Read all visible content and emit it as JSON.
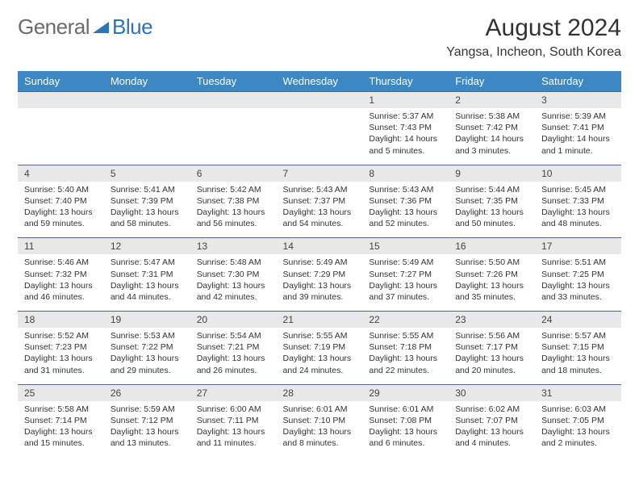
{
  "logo": {
    "text1": "General",
    "text2": "Blue"
  },
  "title": "August 2024",
  "location": "Yangsa, Incheon, South Korea",
  "weekdays": [
    "Sunday",
    "Monday",
    "Tuesday",
    "Wednesday",
    "Thursday",
    "Friday",
    "Saturday"
  ],
  "colors": {
    "header_bg": "#3b88c4",
    "numrow_bg": "#e8e8e8",
    "numrow_border": "#4a6a8a",
    "text": "#333333",
    "logo_gray": "#6b6b6b",
    "logo_blue": "#2f73b3"
  },
  "weeks": [
    {
      "nums": [
        "",
        "",
        "",
        "",
        "1",
        "2",
        "3"
      ],
      "data": [
        "",
        "",
        "",
        "",
        "Sunrise: 5:37 AM\nSunset: 7:43 PM\nDaylight: 14 hours and 5 minutes.",
        "Sunrise: 5:38 AM\nSunset: 7:42 PM\nDaylight: 14 hours and 3 minutes.",
        "Sunrise: 5:39 AM\nSunset: 7:41 PM\nDaylight: 14 hours and 1 minute."
      ]
    },
    {
      "nums": [
        "4",
        "5",
        "6",
        "7",
        "8",
        "9",
        "10"
      ],
      "data": [
        "Sunrise: 5:40 AM\nSunset: 7:40 PM\nDaylight: 13 hours and 59 minutes.",
        "Sunrise: 5:41 AM\nSunset: 7:39 PM\nDaylight: 13 hours and 58 minutes.",
        "Sunrise: 5:42 AM\nSunset: 7:38 PM\nDaylight: 13 hours and 56 minutes.",
        "Sunrise: 5:43 AM\nSunset: 7:37 PM\nDaylight: 13 hours and 54 minutes.",
        "Sunrise: 5:43 AM\nSunset: 7:36 PM\nDaylight: 13 hours and 52 minutes.",
        "Sunrise: 5:44 AM\nSunset: 7:35 PM\nDaylight: 13 hours and 50 minutes.",
        "Sunrise: 5:45 AM\nSunset: 7:33 PM\nDaylight: 13 hours and 48 minutes."
      ]
    },
    {
      "nums": [
        "11",
        "12",
        "13",
        "14",
        "15",
        "16",
        "17"
      ],
      "data": [
        "Sunrise: 5:46 AM\nSunset: 7:32 PM\nDaylight: 13 hours and 46 minutes.",
        "Sunrise: 5:47 AM\nSunset: 7:31 PM\nDaylight: 13 hours and 44 minutes.",
        "Sunrise: 5:48 AM\nSunset: 7:30 PM\nDaylight: 13 hours and 42 minutes.",
        "Sunrise: 5:49 AM\nSunset: 7:29 PM\nDaylight: 13 hours and 39 minutes.",
        "Sunrise: 5:49 AM\nSunset: 7:27 PM\nDaylight: 13 hours and 37 minutes.",
        "Sunrise: 5:50 AM\nSunset: 7:26 PM\nDaylight: 13 hours and 35 minutes.",
        "Sunrise: 5:51 AM\nSunset: 7:25 PM\nDaylight: 13 hours and 33 minutes."
      ]
    },
    {
      "nums": [
        "18",
        "19",
        "20",
        "21",
        "22",
        "23",
        "24"
      ],
      "data": [
        "Sunrise: 5:52 AM\nSunset: 7:23 PM\nDaylight: 13 hours and 31 minutes.",
        "Sunrise: 5:53 AM\nSunset: 7:22 PM\nDaylight: 13 hours and 29 minutes.",
        "Sunrise: 5:54 AM\nSunset: 7:21 PM\nDaylight: 13 hours and 26 minutes.",
        "Sunrise: 5:55 AM\nSunset: 7:19 PM\nDaylight: 13 hours and 24 minutes.",
        "Sunrise: 5:55 AM\nSunset: 7:18 PM\nDaylight: 13 hours and 22 minutes.",
        "Sunrise: 5:56 AM\nSunset: 7:17 PM\nDaylight: 13 hours and 20 minutes.",
        "Sunrise: 5:57 AM\nSunset: 7:15 PM\nDaylight: 13 hours and 18 minutes."
      ]
    },
    {
      "nums": [
        "25",
        "26",
        "27",
        "28",
        "29",
        "30",
        "31"
      ],
      "data": [
        "Sunrise: 5:58 AM\nSunset: 7:14 PM\nDaylight: 13 hours and 15 minutes.",
        "Sunrise: 5:59 AM\nSunset: 7:12 PM\nDaylight: 13 hours and 13 minutes.",
        "Sunrise: 6:00 AM\nSunset: 7:11 PM\nDaylight: 13 hours and 11 minutes.",
        "Sunrise: 6:01 AM\nSunset: 7:10 PM\nDaylight: 13 hours and 8 minutes.",
        "Sunrise: 6:01 AM\nSunset: 7:08 PM\nDaylight: 13 hours and 6 minutes.",
        "Sunrise: 6:02 AM\nSunset: 7:07 PM\nDaylight: 13 hours and 4 minutes.",
        "Sunrise: 6:03 AM\nSunset: 7:05 PM\nDaylight: 13 hours and 2 minutes."
      ]
    }
  ]
}
